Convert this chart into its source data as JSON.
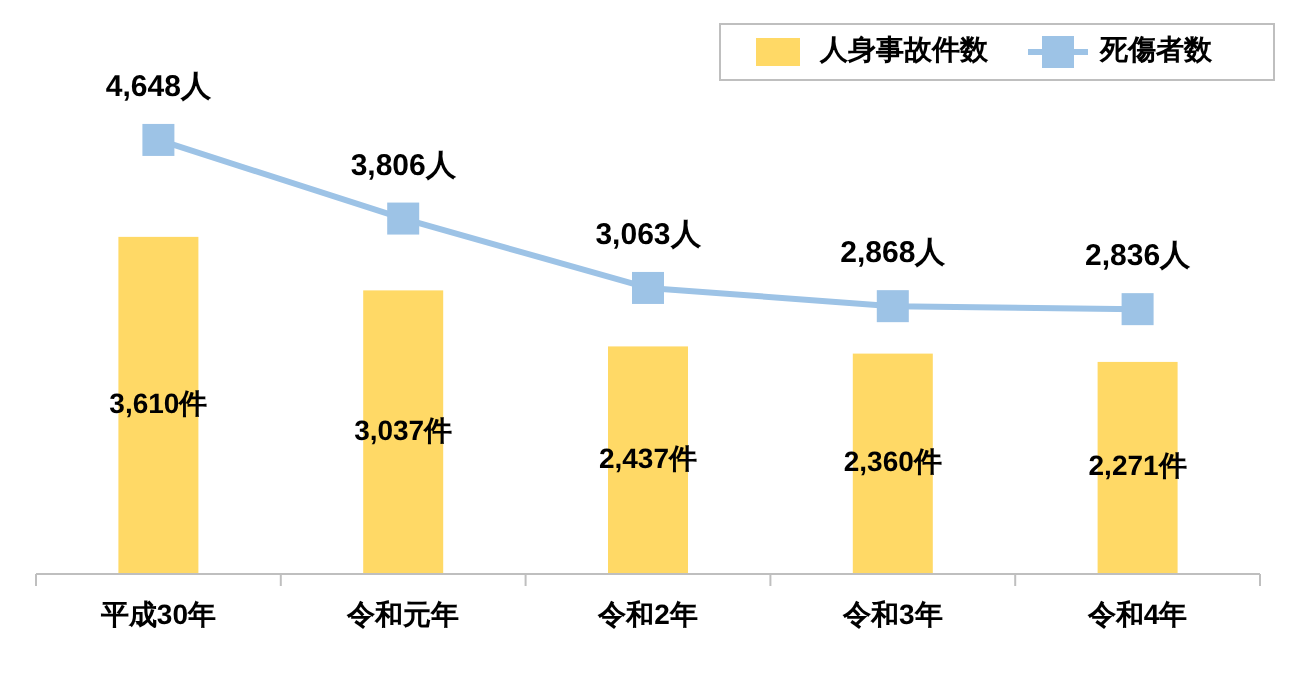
{
  "chart_data": {
    "type": "bar",
    "categories": [
      "平成30年",
      "令和元年",
      "令和2年",
      "令和3年",
      "令和4年"
    ],
    "legend": "top right",
    "tick_labels": "x",
    "series": [
      {
        "name": "人身事故件数",
        "color": "#ffd966",
        "values": [
          3610,
          3037,
          2437,
          2360,
          2271
        ],
        "value_labels": [
          "3,610件",
          "3,037件",
          "2,437件",
          "2,360件",
          "2,271件"
        ]
      },
      {
        "name": "死傷者数",
        "type": "line",
        "color": "#9dc3e6",
        "marker": "square",
        "values": [
          4648,
          3806,
          3063,
          2868,
          2836
        ],
        "value_labels": [
          "4,648人",
          "3,806人",
          "3,063人",
          "2,868人",
          "2,836人"
        ]
      }
    ]
  }
}
